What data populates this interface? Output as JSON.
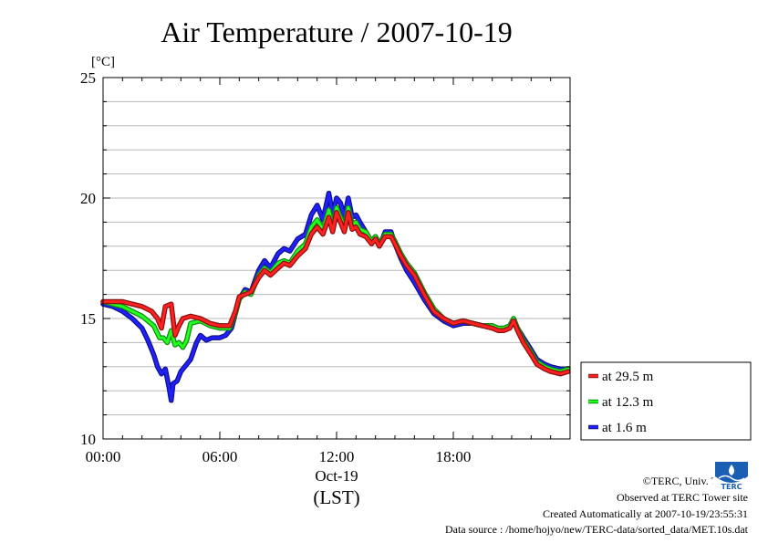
{
  "chart_data": {
    "type": "line",
    "title": "Air Temperature / 2007-10-19",
    "ylabel": "[°C]",
    "ylim": [
      10,
      25
    ],
    "y_ticks": [
      10,
      15,
      20,
      25
    ],
    "xlim": [
      0,
      24
    ],
    "x_ticks": [
      {
        "value": 0,
        "label": "00:00"
      },
      {
        "value": 6,
        "label": "06:00"
      },
      {
        "value": 12,
        "label": "12:00"
      },
      {
        "value": 18,
        "label": "18:00"
      }
    ],
    "x_date_label": "Oct-19",
    "x_unit_label": "(LST)",
    "grid": "horizontal",
    "legend_position": "right",
    "series": [
      {
        "name": "at 29.5 m",
        "color": "#ff2020",
        "x": [
          0,
          0.5,
          1,
          1.5,
          2,
          2.5,
          2.8,
          3,
          3.2,
          3.5,
          3.7,
          3.9,
          4.1,
          4.5,
          5,
          5.5,
          6,
          6.5,
          6.8,
          7,
          7.3,
          7.6,
          8,
          8.3,
          8.6,
          9,
          9.3,
          9.6,
          10,
          10.4,
          10.7,
          11,
          11.3,
          11.6,
          11.8,
          12,
          12.2,
          12.4,
          12.6,
          12.8,
          13,
          13.2,
          13.5,
          13.8,
          14,
          14.2,
          14.5,
          14.8,
          15,
          15.3,
          15.6,
          16,
          16.5,
          17,
          17.5,
          18,
          18.5,
          19,
          19.5,
          20,
          20.3,
          20.6,
          20.9,
          21.1,
          21.3,
          21.6,
          22,
          22.3,
          22.7,
          23,
          23.5,
          23.9
        ],
        "values": [
          15.7,
          15.7,
          15.7,
          15.6,
          15.5,
          15.3,
          15.0,
          14.6,
          15.5,
          15.6,
          14.3,
          14.7,
          15.0,
          15.1,
          15.0,
          14.8,
          14.7,
          14.7,
          15.3,
          15.9,
          16.0,
          16.1,
          16.7,
          17.0,
          16.8,
          17.1,
          17.3,
          17.2,
          17.6,
          17.9,
          18.5,
          18.8,
          18.5,
          19.2,
          18.6,
          19.4,
          19.0,
          18.6,
          19.4,
          18.7,
          18.8,
          18.5,
          18.4,
          18.1,
          18.3,
          18.0,
          18.4,
          18.4,
          18.1,
          17.6,
          17.2,
          16.8,
          16.0,
          15.3,
          15.0,
          14.8,
          14.9,
          14.8,
          14.7,
          14.6,
          14.5,
          14.5,
          14.6,
          14.9,
          14.5,
          14.0,
          13.5,
          13.1,
          12.9,
          12.8,
          12.7,
          12.8
        ]
      },
      {
        "name": "at 12.3 m",
        "color": "#20ff20",
        "x": [
          0,
          0.5,
          1,
          1.5,
          2,
          2.3,
          2.6,
          2.9,
          3.1,
          3.3,
          3.5,
          3.7,
          3.9,
          4.1,
          4.3,
          4.5,
          5,
          5.5,
          6,
          6.5,
          6.8,
          7,
          7.3,
          7.6,
          8,
          8.3,
          8.6,
          9,
          9.3,
          9.6,
          10,
          10.4,
          10.7,
          11,
          11.3,
          11.6,
          11.8,
          12,
          12.2,
          12.4,
          12.6,
          12.8,
          13,
          13.2,
          13.5,
          13.8,
          14,
          14.2,
          14.5,
          14.8,
          15,
          15.3,
          15.6,
          16,
          16.5,
          17,
          17.5,
          18,
          18.5,
          19,
          19.5,
          20,
          20.3,
          20.6,
          20.9,
          21.1,
          21.3,
          21.6,
          22,
          22.3,
          22.7,
          23,
          23.5,
          23.9
        ],
        "values": [
          15.7,
          15.6,
          15.5,
          15.3,
          15.1,
          14.9,
          14.7,
          14.2,
          14.2,
          14.0,
          14.5,
          13.9,
          14.0,
          13.8,
          14.1,
          14.8,
          14.9,
          14.7,
          14.6,
          14.6,
          15.2,
          15.8,
          16.1,
          16.0,
          16.8,
          17.1,
          16.9,
          17.3,
          17.4,
          17.3,
          17.8,
          18.1,
          18.8,
          19.1,
          18.7,
          19.5,
          18.8,
          19.6,
          19.2,
          18.8,
          19.6,
          18.9,
          19.0,
          18.7,
          18.6,
          18.2,
          18.4,
          18.1,
          18.5,
          18.5,
          18.2,
          17.7,
          17.3,
          16.9,
          16.1,
          15.4,
          15.0,
          14.8,
          14.9,
          14.8,
          14.7,
          14.7,
          14.6,
          14.6,
          14.7,
          15.0,
          14.6,
          14.1,
          13.6,
          13.2,
          13.0,
          12.9,
          12.8,
          12.9
        ]
      },
      {
        "name": "at 1.6 m",
        "color": "#2020ff",
        "x": [
          0,
          0.5,
          1,
          1.5,
          2,
          2.3,
          2.6,
          2.8,
          3,
          3.2,
          3.4,
          3.5,
          3.6,
          3.8,
          4,
          4.2,
          4.5,
          4.8,
          5,
          5.3,
          5.6,
          6,
          6.3,
          6.6,
          6.8,
          7,
          7.3,
          7.6,
          8,
          8.3,
          8.6,
          9,
          9.3,
          9.6,
          10,
          10.4,
          10.7,
          11,
          11.3,
          11.6,
          11.8,
          12,
          12.2,
          12.4,
          12.6,
          12.8,
          13,
          13.2,
          13.5,
          13.8,
          14,
          14.2,
          14.5,
          14.8,
          15,
          15.3,
          15.6,
          16,
          16.5,
          17,
          17.5,
          18,
          18.5,
          19,
          19.5,
          20,
          20.3,
          20.6,
          20.9,
          21.1,
          21.3,
          21.6,
          22,
          22.3,
          22.7,
          23,
          23.5,
          23.9
        ],
        "values": [
          15.6,
          15.5,
          15.3,
          15.0,
          14.6,
          14.1,
          13.5,
          13.0,
          12.7,
          12.9,
          12.1,
          11.6,
          12.3,
          12.4,
          12.8,
          13.0,
          13.3,
          14.0,
          14.3,
          14.1,
          14.2,
          14.2,
          14.3,
          14.6,
          15.2,
          15.8,
          16.2,
          16.1,
          17.0,
          17.4,
          17.1,
          17.7,
          17.9,
          17.8,
          18.3,
          18.5,
          19.3,
          19.7,
          19.1,
          20.2,
          19.3,
          20.0,
          19.8,
          19.2,
          20.0,
          19.2,
          19.3,
          19.0,
          18.6,
          18.2,
          18.4,
          18.0,
          18.6,
          18.6,
          18.1,
          17.5,
          17.0,
          16.5,
          15.8,
          15.2,
          14.9,
          14.7,
          14.8,
          14.8,
          14.7,
          14.7,
          14.6,
          14.6,
          14.7,
          15.0,
          14.6,
          14.2,
          13.7,
          13.3,
          13.1,
          13.0,
          12.9,
          12.9
        ]
      }
    ]
  },
  "credits": {
    "copyright": "©TERC, Univ. Tsukuba",
    "observed": "Observed at TERC Tower site",
    "created": "Created Automatically at 2007-10-19/23:55:31",
    "source": "Data source : /home/hojyo/new/TERC-data/sorted_data/MET.10s.dat"
  },
  "logo": {
    "text": "TERC",
    "color": "#1a5fb4"
  }
}
